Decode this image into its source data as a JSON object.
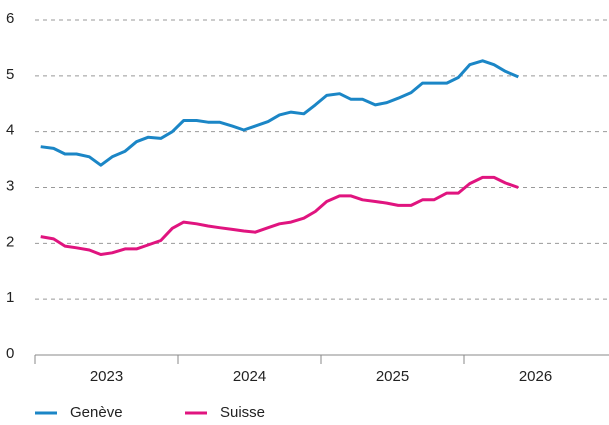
{
  "chart_data": {
    "type": "line",
    "x": [
      2023.04,
      2023.13,
      2023.21,
      2023.29,
      2023.38,
      2023.46,
      2023.54,
      2023.63,
      2023.71,
      2023.79,
      2023.88,
      2023.96,
      2024.04,
      2024.13,
      2024.21,
      2024.29,
      2024.38,
      2024.46,
      2024.54,
      2024.63,
      2024.71,
      2024.79,
      2024.88,
      2024.96,
      2025.04,
      2025.13,
      2025.21,
      2025.29,
      2025.38,
      2025.46,
      2025.54,
      2025.63,
      2025.71,
      2025.79,
      2025.88,
      2025.96,
      2026.04,
      2026.13,
      2026.21,
      2026.29,
      2026.38
    ],
    "series": [
      {
        "name": "Genève",
        "color": "#1b86c6",
        "values": [
          3.73,
          3.7,
          3.6,
          3.6,
          3.55,
          3.4,
          3.55,
          3.65,
          3.82,
          3.9,
          3.88,
          4.0,
          4.2,
          4.2,
          4.17,
          4.17,
          4.1,
          4.03,
          4.1,
          4.18,
          4.3,
          4.35,
          4.32,
          4.48,
          4.65,
          4.68,
          4.58,
          4.58,
          4.48,
          4.52,
          4.6,
          4.7,
          4.87,
          4.87,
          4.87,
          4.97,
          5.2,
          5.27,
          5.2,
          5.08,
          4.98
        ]
      },
      {
        "name": "Suisse",
        "color": "#e0147f",
        "values": [
          2.12,
          2.08,
          1.95,
          1.92,
          1.88,
          1.8,
          1.83,
          1.9,
          1.9,
          1.97,
          2.05,
          2.27,
          2.38,
          2.35,
          2.31,
          2.28,
          2.25,
          2.22,
          2.2,
          2.28,
          2.35,
          2.38,
          2.45,
          2.57,
          2.75,
          2.85,
          2.85,
          2.78,
          2.75,
          2.72,
          2.68,
          2.68,
          2.78,
          2.78,
          2.9,
          2.9,
          3.07,
          3.18,
          3.18,
          3.08,
          3.0
        ]
      }
    ],
    "xlim": [
      2023,
      2027
    ],
    "xticks": [
      {
        "value": 2023.5,
        "label": "2023"
      },
      {
        "value": 2024.5,
        "label": "2024"
      },
      {
        "value": 2025.5,
        "label": "2025"
      },
      {
        "value": 2026.5,
        "label": "2026"
      }
    ],
    "ylim": [
      0,
      6
    ],
    "yticks": [
      0,
      1,
      2,
      3,
      4,
      5,
      6
    ],
    "grid": true,
    "legend": "bottom-left"
  }
}
